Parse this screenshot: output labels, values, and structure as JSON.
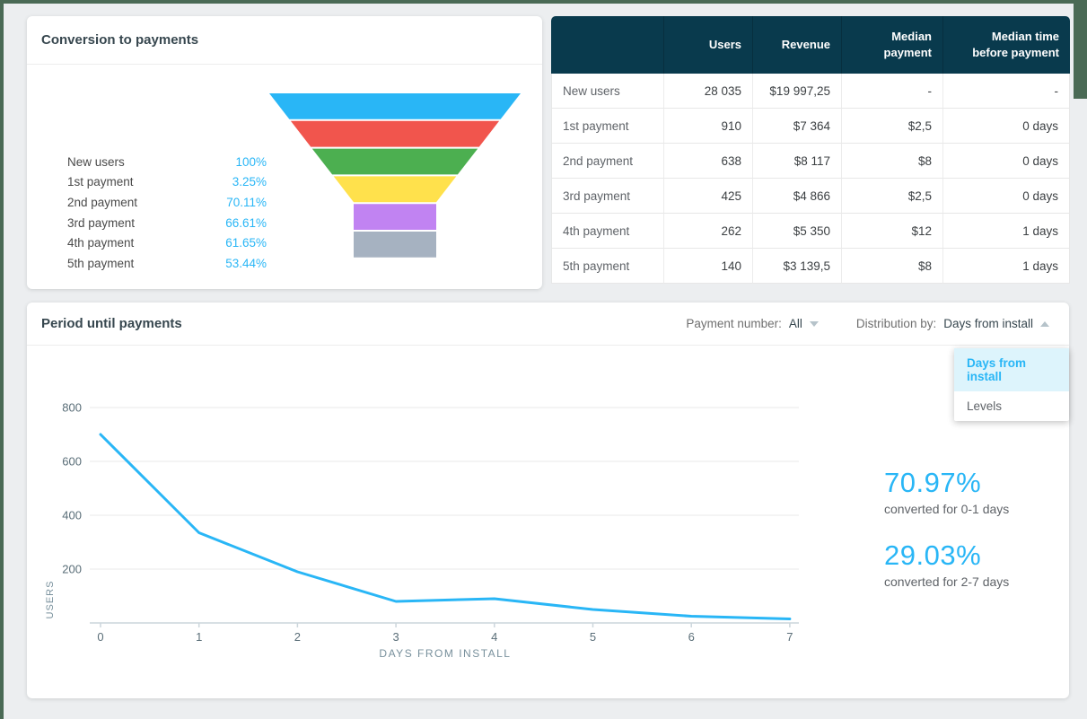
{
  "colors": {
    "accent": "#29b6f6",
    "table_header_bg": "#093a4d",
    "frame_green": "#4a6a55",
    "page_bg": "#eceef0"
  },
  "funnel_card": {
    "title": "Conversion to payments",
    "rows": [
      {
        "label": "New users",
        "percent": "100%"
      },
      {
        "label": "1st payment",
        "percent": "3.25%"
      },
      {
        "label": "2nd payment",
        "percent": "70.11%"
      },
      {
        "label": "3rd payment",
        "percent": "66.61%"
      },
      {
        "label": "4th payment",
        "percent": "61.65%"
      },
      {
        "label": "5th payment",
        "percent": "53.44%"
      }
    ]
  },
  "summary_table": {
    "columns": [
      "",
      "Users",
      "Revenue",
      "Median payment",
      "Median time before payment"
    ],
    "rows": [
      [
        "New users",
        "28 035",
        "$19 997,25",
        "-",
        "-"
      ],
      [
        "1st payment",
        "910",
        "$7 364",
        "$2,5",
        "0 days"
      ],
      [
        "2nd payment",
        "638",
        "$8 117",
        "$8",
        "0 days"
      ],
      [
        "3rd payment",
        "425",
        "$4 866",
        "$2,5",
        "0 days"
      ],
      [
        "4th payment",
        "262",
        "$5 350",
        "$12",
        "1 days"
      ],
      [
        "5th payment",
        "140",
        "$3 139,5",
        "$8",
        "1 days"
      ]
    ]
  },
  "period_card": {
    "title": "Period until payments",
    "payment_number_label": "Payment number:",
    "payment_number_value": "All",
    "distribution_label": "Distribution by:",
    "distribution_value": "Days from install",
    "dropdown_options": [
      "Days from install",
      "Levels"
    ],
    "stats": [
      {
        "value": "70.97%",
        "caption": "converted for 0-1 days"
      },
      {
        "value": "29.03%",
        "caption": "converted for 2-7 days"
      }
    ]
  },
  "chart_data": [
    {
      "type": "funnel",
      "title": "Conversion to payments",
      "categories": [
        "New users",
        "1st payment",
        "2nd payment",
        "3rd payment",
        "4th payment",
        "5th payment"
      ],
      "values_percent": [
        100,
        3.25,
        70.11,
        66.61,
        61.65,
        53.44
      ],
      "colors": [
        "#29b6f6",
        "#f1554d",
        "#4caf50",
        "#ffe14c",
        "#c183f2",
        "#a6b2c1"
      ]
    },
    {
      "type": "line",
      "title": "Period until payments",
      "x": [
        0,
        1,
        2,
        3,
        4,
        5,
        6,
        7
      ],
      "values": [
        700,
        335,
        190,
        80,
        90,
        50,
        25,
        15
      ],
      "xlabel": "DAYS FROM INSTALL",
      "ylabel": "USERS",
      "ylim": [
        0,
        800
      ],
      "yticks": [
        200,
        400,
        600,
        800
      ],
      "line_color": "#29b6f6",
      "grid": true,
      "legend": "none"
    }
  ]
}
